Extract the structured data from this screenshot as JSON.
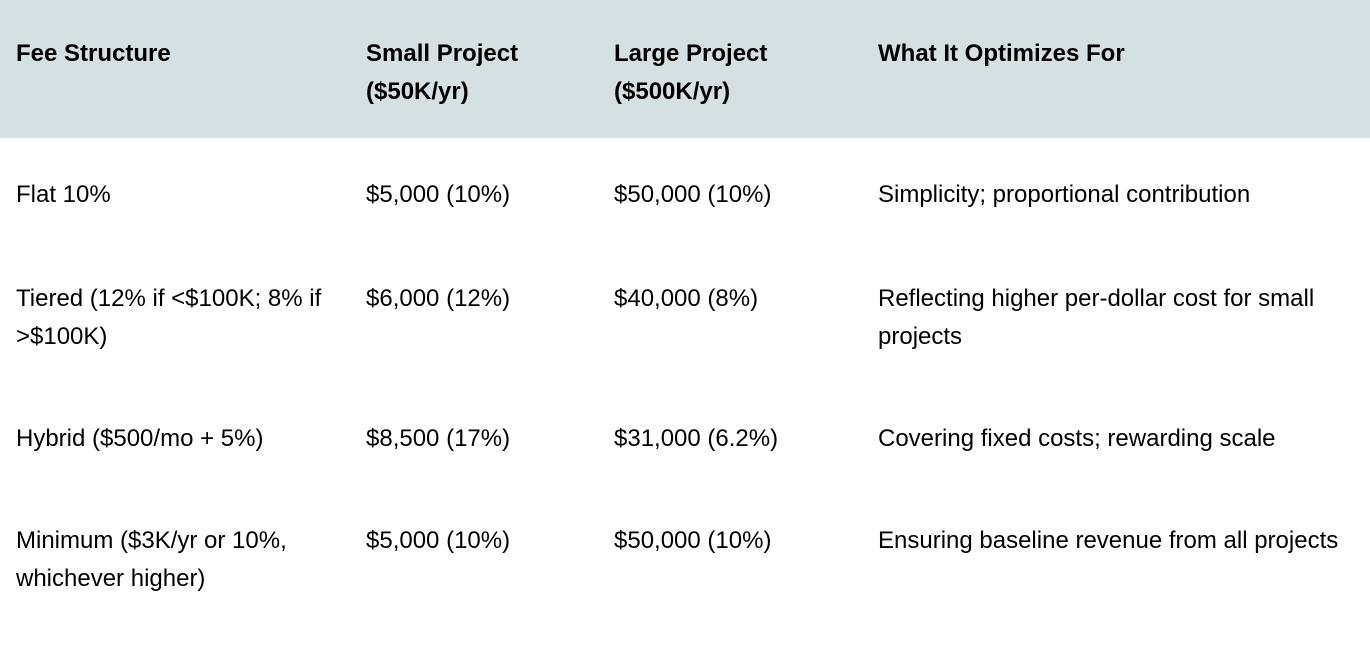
{
  "table": {
    "headers": [
      "Fee Structure",
      "Small Project ($50K/yr)",
      "Large Project ($500K/yr)",
      "What It Optimizes For"
    ],
    "rows": [
      [
        "Flat 10%",
        "$5,000 (10%)",
        "$50,000 (10%)",
        "Simplicity; proportional contribution"
      ],
      [
        "Tiered (12% if <$100K; 8% if >$100K)",
        "$6,000 (12%)",
        "$40,000 (8%)",
        "Reflecting higher per-dollar cost for small projects"
      ],
      [
        "Hybrid ($500/mo + 5%)",
        "$8,500 (17%)",
        "$31,000 (6.2%)",
        "Covering fixed costs; rewarding scale"
      ],
      [
        "Minimum ($3K/yr or 10%, whichever higher)",
        "$5,000 (10%)",
        "$50,000 (10%)",
        "Ensuring baseline revenue from all projects"
      ]
    ]
  },
  "colors": {
    "header_background": "#d5e0e3",
    "text": "#000000",
    "background": "#ffffff"
  }
}
